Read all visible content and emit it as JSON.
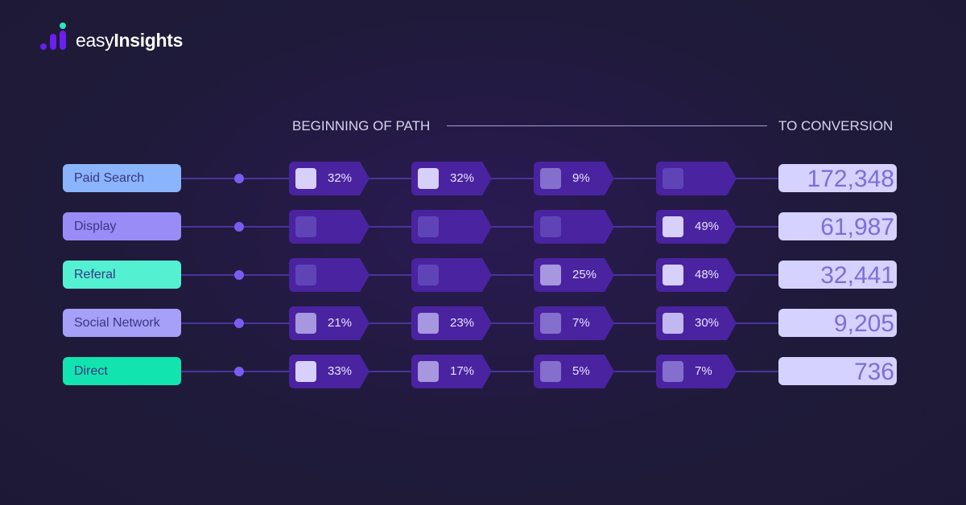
{
  "brand": {
    "name_light": "easy",
    "name_bold": "Insights"
  },
  "header": {
    "start": "BEGINNING OF PATH",
    "end": "TO CONVERSION"
  },
  "shade_colors": {
    "light": "#d6d0fa",
    "midlight": "#c2b8f0",
    "mid": "#a697df",
    "dark": "#8470cc",
    "empty": "#5f44b8"
  },
  "rows": [
    {
      "channel": "Paid Search",
      "color": "#8ab4fb",
      "steps": [
        {
          "pct": "32%",
          "shade": "light"
        },
        {
          "pct": "32%",
          "shade": "light"
        },
        {
          "pct": "9%",
          "shade": "dark"
        },
        {
          "pct": "",
          "shade": "empty"
        }
      ],
      "conversions": "172,348"
    },
    {
      "channel": "Display",
      "color": "#9a8cf7",
      "steps": [
        {
          "pct": "",
          "shade": "empty"
        },
        {
          "pct": "",
          "shade": "empty"
        },
        {
          "pct": "",
          "shade": "empty"
        },
        {
          "pct": "49%",
          "shade": "light"
        }
      ],
      "conversions": "61,987"
    },
    {
      "channel": "Referal",
      "color": "#54f0d2",
      "steps": [
        {
          "pct": "",
          "shade": "empty"
        },
        {
          "pct": "",
          "shade": "empty"
        },
        {
          "pct": "25%",
          "shade": "mid"
        },
        {
          "pct": "48%",
          "shade": "light"
        }
      ],
      "conversions": "32,441"
    },
    {
      "channel": "Social Network",
      "color": "#a6a0f8",
      "steps": [
        {
          "pct": "21%",
          "shade": "mid"
        },
        {
          "pct": "23%",
          "shade": "mid"
        },
        {
          "pct": "7%",
          "shade": "dark"
        },
        {
          "pct": "30%",
          "shade": "midlight"
        }
      ],
      "conversions": "9,205"
    },
    {
      "channel": "Direct",
      "color": "#12e4b0",
      "steps": [
        {
          "pct": "33%",
          "shade": "light"
        },
        {
          "pct": "17%",
          "shade": "mid"
        },
        {
          "pct": "5%",
          "shade": "dark"
        },
        {
          "pct": "7%",
          "shade": "dark"
        }
      ],
      "conversions": "736"
    }
  ]
}
